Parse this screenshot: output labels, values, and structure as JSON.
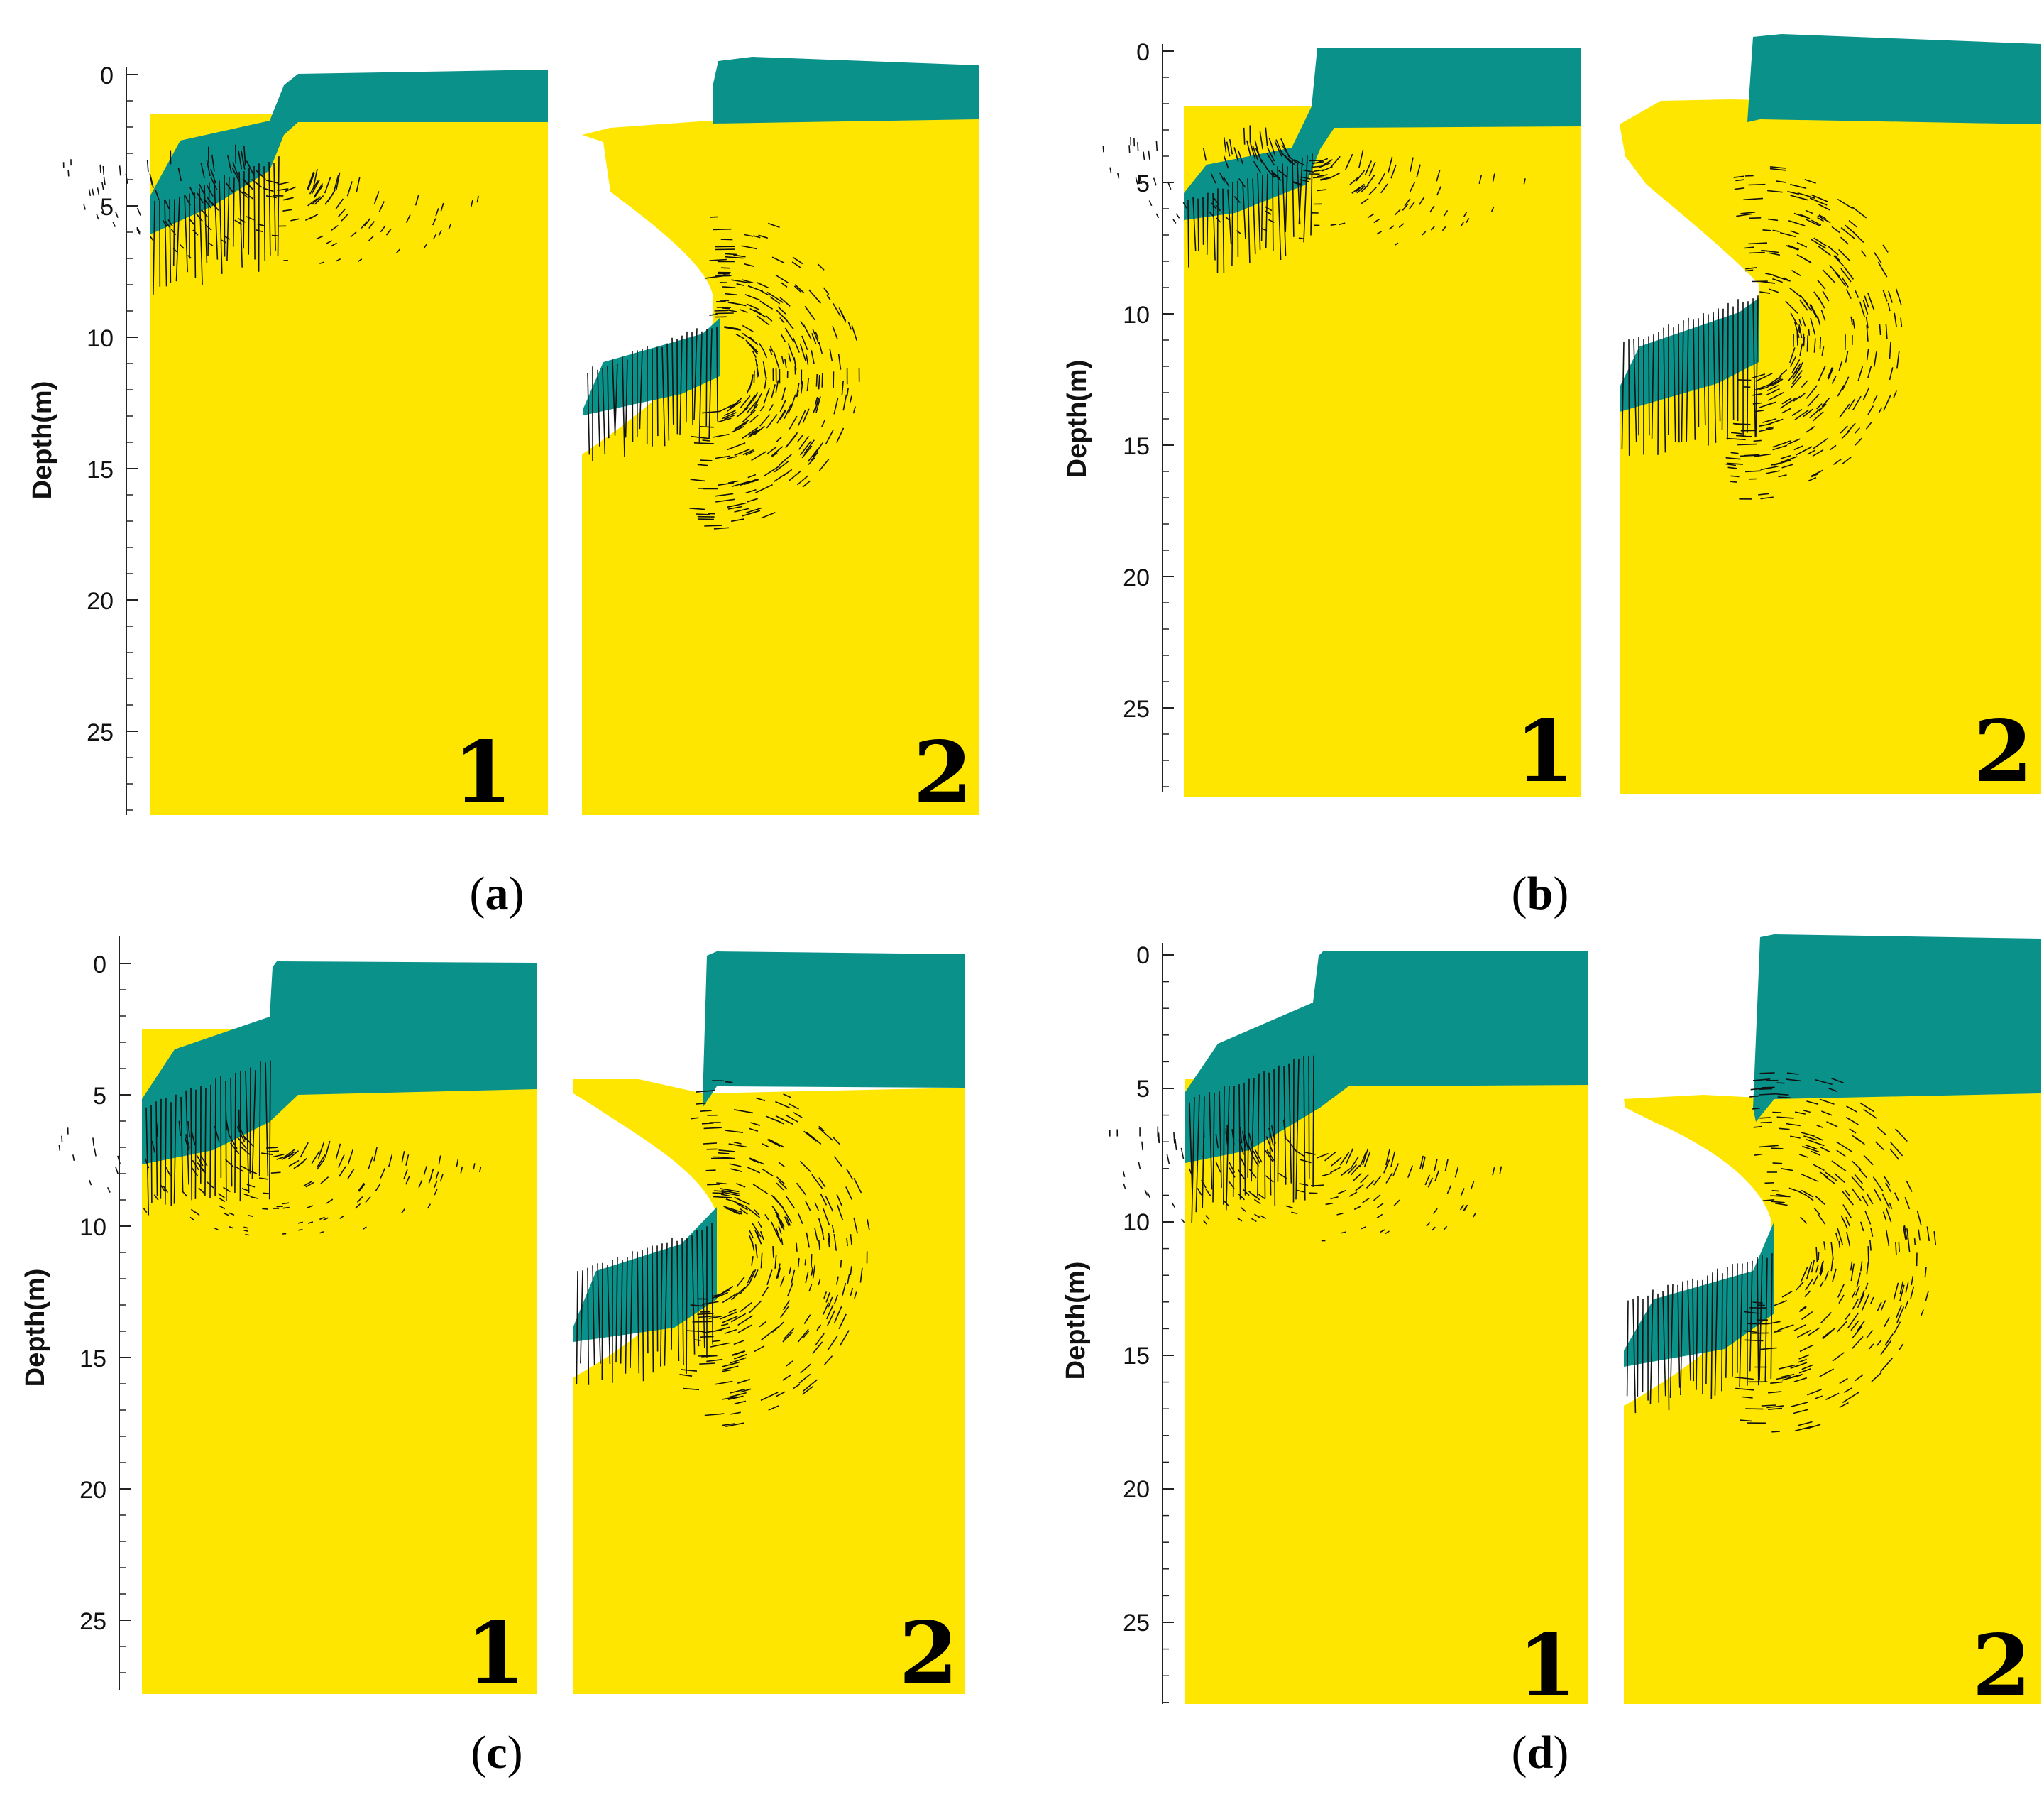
{
  "colors": {
    "water": "#0A918A",
    "soil": "#FFE600",
    "arrow": "#111111",
    "axis": "#222222"
  },
  "axis": {
    "ylabel": "Depth(m)",
    "ticks": [
      0,
      5,
      10,
      15,
      20,
      25
    ],
    "range": [
      0,
      28
    ]
  },
  "panels": [
    {
      "caption_letter": "a",
      "stages": [
        {
          "label": "1",
          "water_depth_right": 1.9
        },
        {
          "label": "2",
          "water_depth_right": 1.8,
          "cavity_depth": [
            4.9,
            11.0
          ]
        }
      ]
    },
    {
      "caption_letter": "b",
      "stages": [
        {
          "label": "1",
          "water_depth_right": 2.9
        },
        {
          "label": "2",
          "water_depth_right": 2.7,
          "cavity_depth": [
            5.0,
            11.2
          ]
        }
      ]
    },
    {
      "caption_letter": "c",
      "stages": [
        {
          "label": "1",
          "water_depth_right": 4.9
        },
        {
          "label": "2",
          "water_depth_right": 4.7,
          "cavity_depth": [
            6.8,
            13.2
          ]
        }
      ]
    },
    {
      "caption_letter": "d",
      "stages": [
        {
          "label": "1",
          "water_depth_right": 4.9
        },
        {
          "label": "2",
          "water_depth_right": 5.6,
          "cavity_depth": [
            7.5,
            14.0
          ]
        }
      ]
    }
  ]
}
